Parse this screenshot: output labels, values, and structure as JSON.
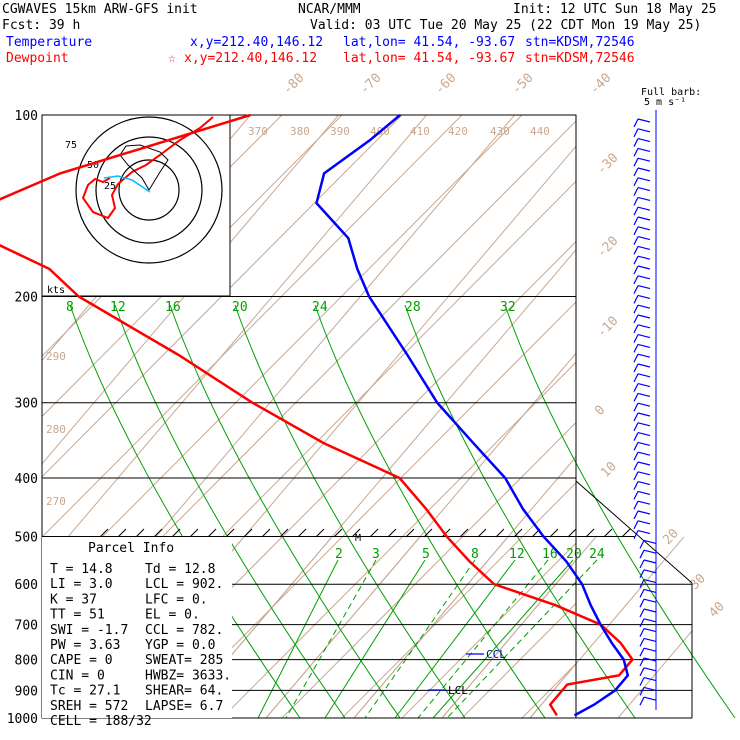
{
  "header": {
    "left1": "CGWAVES 15km ARW-GFS init",
    "left2": "Fcst:   39 h",
    "center1": "NCAR/MMM",
    "init": "Init: 12 UTC Sun 18 May 25",
    "valid": "Valid: 03 UTC Tue 20 May 25 (22 CDT Mon 19 May 25)",
    "temp_label": "Temperature",
    "temp_xy": "x,y=212.40,146.12",
    "temp_latlon": "lat,lon= 41.54, -93.67",
    "temp_stn": "stn=KDSM,72546",
    "dew_label": "Dewpoint",
    "dew_star": "☆",
    "dew_xy": "x,y=212.40,146.12",
    "dew_latlon": "lat,lon= 41.54, -93.67",
    "dew_stn": "stn=KDSM,72546",
    "barb_note1": "Full barb:",
    "barb_note2": "5 m s⁻¹"
  },
  "colors": {
    "temperature": "#0000ff",
    "dewpoint": "#ff0000",
    "isotherm": "#c8a890",
    "mixing_ratio": "#00a000",
    "isobar": "#000000"
  },
  "hodograph": {
    "units": "kts",
    "ring_labels": [
      "25",
      "50",
      "75"
    ]
  },
  "parcel_info": {
    "title": "Parcel Info",
    "rows": [
      [
        "T  =    14.8",
        "Td =  12.8"
      ],
      [
        "LI =     3.0",
        "LCL =  902."
      ],
      [
        "K  =      37",
        "LFC =    0."
      ],
      [
        "TT =      51",
        "EL  =    0."
      ],
      [
        "SWI =   -1.7",
        "CCL =  782."
      ],
      [
        "PW =    3.63",
        "YGP =   0.0"
      ],
      [
        "CAPE =     0",
        "SWEAT=  285"
      ],
      [
        "CIN  =     0",
        "HWBZ= 3633."
      ],
      [
        "Tc =    27.1",
        "SHEAR=  64."
      ],
      [
        "SREH =   572",
        "LAPSE=  6.7"
      ],
      [
        "CELL = 188/32",
        ""
      ]
    ]
  },
  "markers": {
    "ccl": "CCL",
    "lcl": "LCL",
    "m": "M"
  },
  "chart_data": {
    "type": "line",
    "title": "",
    "pressure_levels_hPa": [
      100,
      200,
      300,
      400,
      500,
      600,
      700,
      800,
      900,
      1000
    ],
    "pressure_labels": [
      "100",
      "200",
      "300",
      "400",
      "500",
      "600",
      "700",
      "800",
      "900",
      "1000"
    ],
    "isotherm_labels_C": [
      "-80",
      "-70",
      "-60",
      "-50",
      "-40",
      "-30",
      "-20",
      "-10",
      "0",
      "10",
      "20",
      "30",
      "40"
    ],
    "theta_labels_K": [
      "370",
      "380",
      "390",
      "400",
      "410",
      "420",
      "430",
      "440",
      "290",
      "280",
      "270"
    ],
    "mixing_ratio_labels_upper": [
      "8",
      "12",
      "16",
      "20",
      "24",
      "28",
      "32"
    ],
    "mixing_ratio_labels_lower": [
      "2",
      "3",
      "5",
      "8",
      "12",
      "16",
      "20",
      "24"
    ],
    "series": [
      {
        "name": "Temperature",
        "points": [
          {
            "p": 100,
            "t": -63
          },
          {
            "p": 110,
            "t": -64
          },
          {
            "p": 125,
            "t": -66
          },
          {
            "p": 140,
            "t": -64
          },
          {
            "p": 160,
            "t": -57
          },
          {
            "p": 180,
            "t": -53
          },
          {
            "p": 200,
            "t": -49
          },
          {
            "p": 250,
            "t": -39
          },
          {
            "p": 300,
            "t": -31
          },
          {
            "p": 350,
            "t": -23
          },
          {
            "p": 400,
            "t": -16
          },
          {
            "p": 450,
            "t": -11
          },
          {
            "p": 500,
            "t": -6
          },
          {
            "p": 550,
            "t": -1
          },
          {
            "p": 600,
            "t": 3
          },
          {
            "p": 650,
            "t": 6
          },
          {
            "p": 700,
            "t": 9
          },
          {
            "p": 750,
            "t": 12
          },
          {
            "p": 800,
            "t": 15
          },
          {
            "p": 850,
            "t": 17
          },
          {
            "p": 900,
            "t": 17
          },
          {
            "p": 950,
            "t": 16
          },
          {
            "p": 990,
            "t": 14.8
          }
        ]
      },
      {
        "name": "Dewpoint",
        "points": [
          {
            "p": 100,
            "t": -80
          },
          {
            "p": 125,
            "t": -96
          },
          {
            "p": 150,
            "t": -104
          },
          {
            "p": 180,
            "t": -88
          },
          {
            "p": 200,
            "t": -82
          },
          {
            "p": 250,
            "t": -65
          },
          {
            "p": 300,
            "t": -52
          },
          {
            "p": 350,
            "t": -40
          },
          {
            "p": 400,
            "t": -28
          },
          {
            "p": 450,
            "t": -22
          },
          {
            "p": 500,
            "t": -17
          },
          {
            "p": 550,
            "t": -12
          },
          {
            "p": 600,
            "t": -7
          },
          {
            "p": 650,
            "t": 2
          },
          {
            "p": 700,
            "t": 9
          },
          {
            "p": 750,
            "t": 13
          },
          {
            "p": 800,
            "t": 16
          },
          {
            "p": 850,
            "t": 16
          },
          {
            "p": 880,
            "t": 11
          },
          {
            "p": 950,
            "t": 11
          },
          {
            "p": 990,
            "t": 12.8
          }
        ]
      }
    ],
    "parcel": {
      "LCL_hPa": 902,
      "CCL_hPa": 782
    },
    "ylim": [
      1000,
      100
    ],
    "y_scale": "log-pressure"
  }
}
